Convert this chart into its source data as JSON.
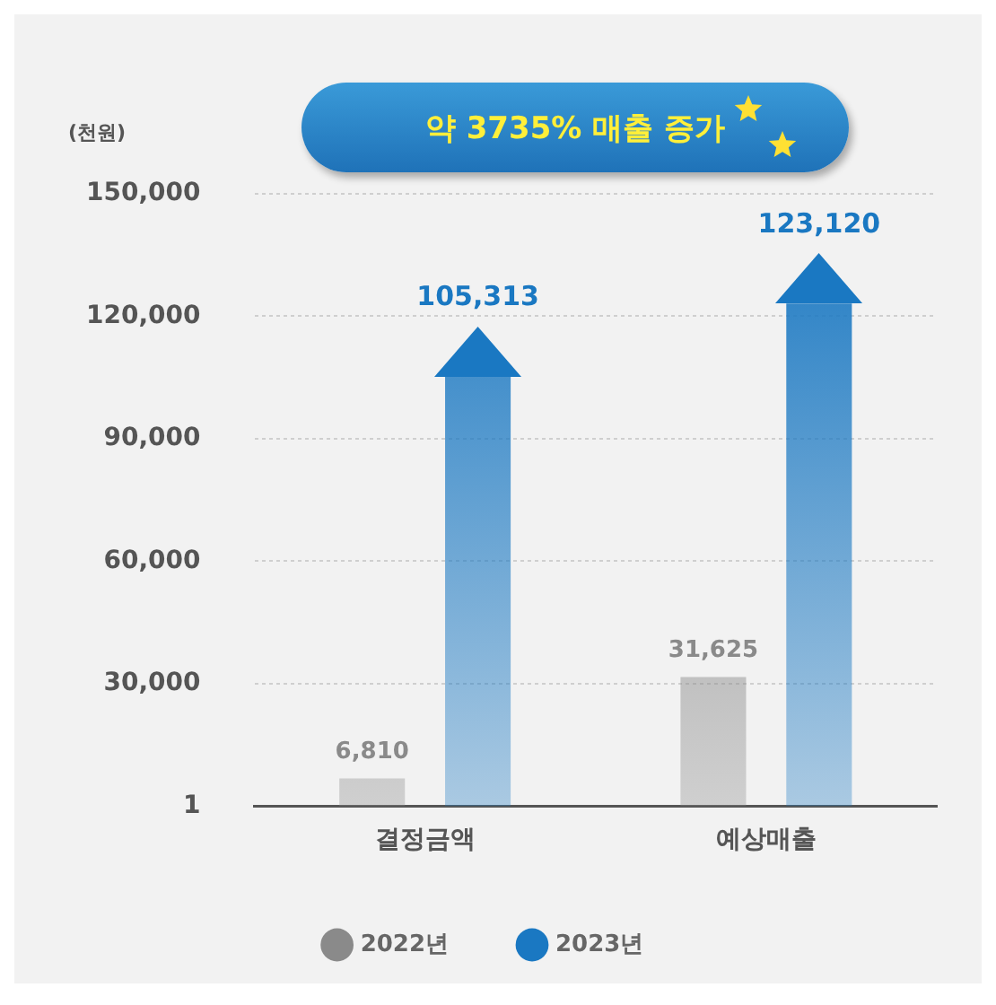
{
  "chart_data": {
    "type": "bar",
    "title": "약 3735% 매출 증가",
    "ylabel": "(천원)",
    "categories": [
      "결정금액",
      "예상매출"
    ],
    "series": [
      {
        "name": "2022년",
        "color": "#8a8a8a",
        "values": [
          6810,
          31625
        ],
        "value_labels": [
          "6,810",
          "31,625"
        ]
      },
      {
        "name": "2023년",
        "color": "#1a78c2",
        "values": [
          105313,
          123120
        ],
        "value_labels": [
          "105,313",
          "123,120"
        ],
        "marker": "triangle"
      }
    ],
    "ylim": [
      1,
      150000
    ],
    "yticks": [
      1,
      {
        "value": 30000,
        "label": "30,000"
      },
      {
        "value": 60000,
        "label": "60,000"
      },
      {
        "value": 90000,
        "label": "90,000"
      },
      {
        "value": 120000,
        "label": "120,000"
      },
      {
        "value": 150000,
        "label": "150,000"
      }
    ],
    "grid": "y",
    "legend": "bottom"
  }
}
